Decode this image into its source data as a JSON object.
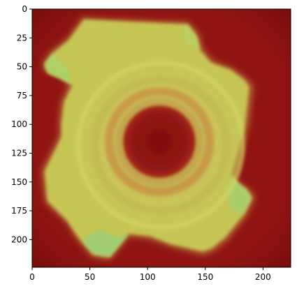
{
  "figure": {
    "image_description": "",
    "colors": {
      "background_red": "#8c0f10",
      "heat_yellow": "#cfd85c",
      "heat_green": "#9fd37a",
      "axis": "#000000"
    }
  },
  "axes": {
    "x_ticks": [
      "0",
      "50",
      "100",
      "150",
      "200"
    ],
    "y_ticks": [
      "0",
      "25",
      "50",
      "75",
      "100",
      "125",
      "150",
      "175",
      "200"
    ]
  }
}
